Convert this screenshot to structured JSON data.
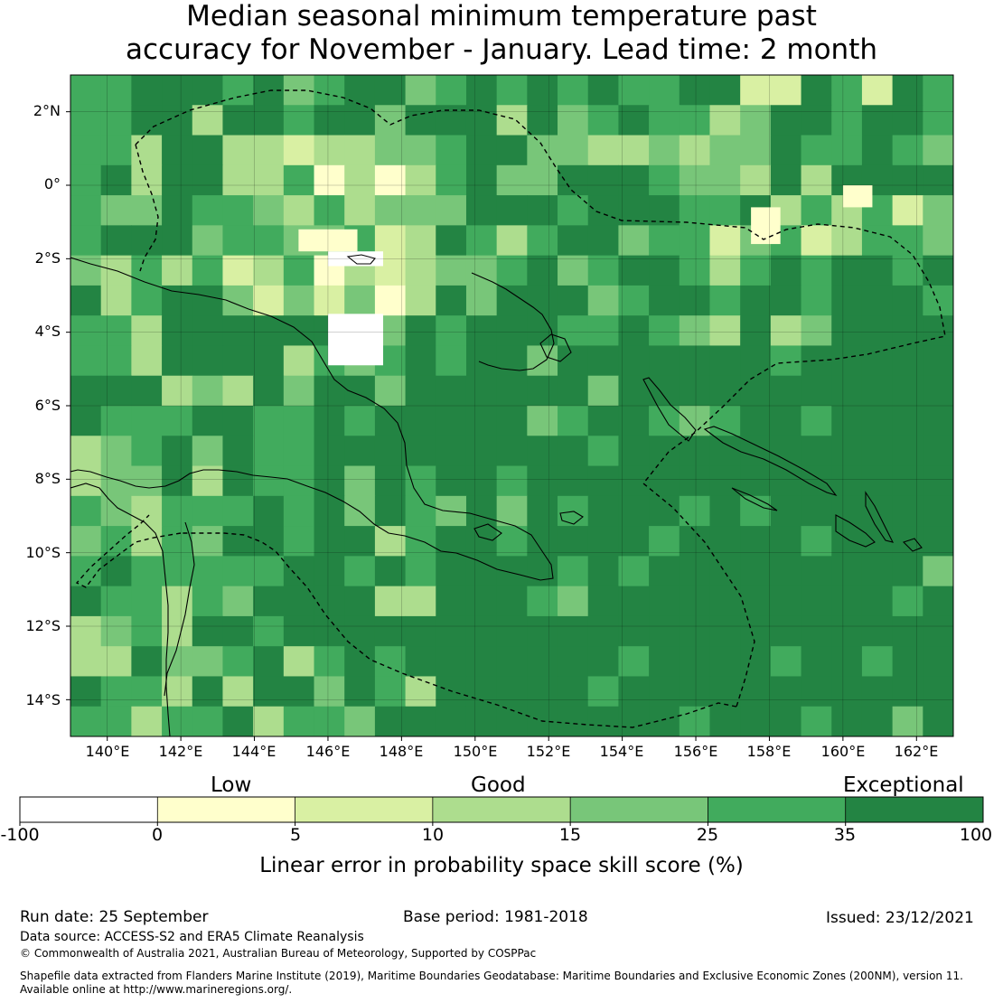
{
  "title": {
    "line1": "Median seasonal minimum temperature past",
    "line2": "accuracy for November - January. Lead time: 2 month"
  },
  "map": {
    "lat_labels": [
      "2°N",
      "0°",
      "2°S",
      "4°S",
      "6°S",
      "8°S",
      "10°S",
      "12°S",
      "14°S"
    ],
    "lon_labels": [
      "140°E",
      "142°E",
      "144°E",
      "146°E",
      "148°E",
      "150°E",
      "152°E",
      "154°E",
      "156°E",
      "158°E",
      "160°E",
      "162°E"
    ],
    "region": {
      "lon_min": 139,
      "lon_max": 163,
      "lat_min": -15,
      "lat_max": 3
    }
  },
  "legend": {
    "categories": [
      "Low",
      "Good",
      "Exceptional"
    ],
    "ticks": [
      "-100",
      "0",
      "5",
      "10",
      "15",
      "25",
      "35",
      "100"
    ],
    "bins": [
      {
        "from": -100,
        "to": 0,
        "color": "#ffffff"
      },
      {
        "from": 0,
        "to": 5,
        "color": "#ffffcc"
      },
      {
        "from": 5,
        "to": 10,
        "color": "#d9f0a3"
      },
      {
        "from": 10,
        "to": 15,
        "color": "#addd8e"
      },
      {
        "from": 15,
        "to": 25,
        "color": "#78c679"
      },
      {
        "from": 25,
        "to": 35,
        "color": "#41ab5d"
      },
      {
        "from": 35,
        "to": 100,
        "color": "#238443"
      }
    ],
    "title": "Linear error in probability space skill score (%)"
  },
  "footer": {
    "run_date": "Run date: 25 September",
    "base_period": "Base period: 1981-2018",
    "issued": "Issued: 23/12/2021",
    "data_source": "Data source: ACCESS-S2 and ERA5 Climate Reanalysis",
    "copyright": "© Commonwealth of Australia 2021, Australian Bureau of Meteorology, Supported by COSPPac",
    "shapefile_line1": "Shapefile data extracted from Flanders Marine Institute (2019), Maritime Boundaries Geodatabase: Maritime Boundaries and Exclusive Economic Zones (200NM), version 11.",
    "shapefile_line2": "Available online at http://www.marineregions.org/."
  },
  "colors": {
    "exceptional": "#238443",
    "very_good": "#41ab5d",
    "good": "#78c679",
    "fair": "#addd8e",
    "low_fair": "#d9f0a3",
    "low": "#ffffcc",
    "none": "#ffffff"
  }
}
